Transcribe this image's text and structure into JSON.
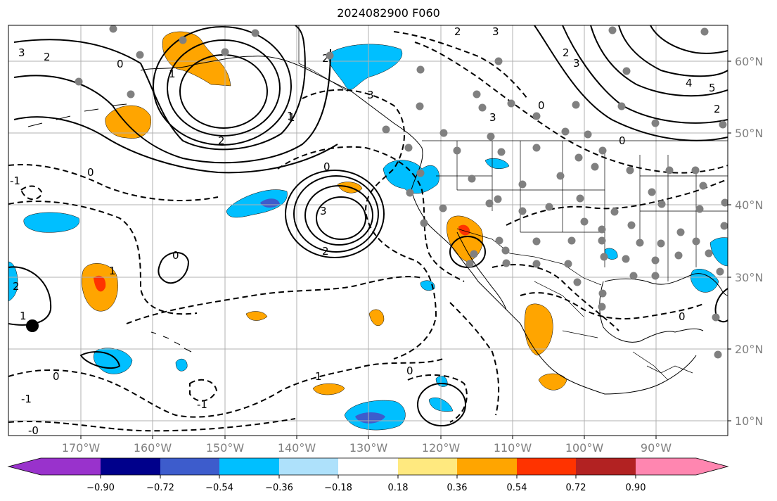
{
  "title": "2024082900 F060",
  "map": {
    "projection": "cylindrical",
    "lon_range": [
      -180,
      -80
    ],
    "lat_range": [
      8,
      65
    ],
    "lon_labels": [
      "170°W",
      "160°W",
      "150°W",
      "140°W",
      "130°W",
      "120°W",
      "110°W",
      "100°W",
      "90°W"
    ],
    "lat_labels": [
      "60°N",
      "50°N",
      "40°N",
      "30°N",
      "20°N",
      "10°N"
    ],
    "contour_line_color": "#000000",
    "contour_labels": [
      "3",
      "2",
      "0",
      "2",
      "1",
      "3",
      "2",
      "0",
      "3",
      "3",
      "2",
      "0",
      "4",
      "5",
      "2",
      "2",
      "1",
      "3",
      "2",
      "0",
      "0",
      "-1",
      "1",
      "2",
      "1",
      "0",
      "0",
      "1",
      "0",
      "-1",
      "-1",
      "0",
      "-0",
      "3",
      "1"
    ],
    "station_dot_color": "#808080"
  },
  "colorbar": {
    "ticks": [
      "−0.90",
      "−0.72",
      "−0.54",
      "−0.36",
      "−0.18",
      "0.18",
      "0.36",
      "0.54",
      "0.72",
      "0.90"
    ],
    "colors": [
      "#9932cc",
      "#00008b",
      "#3d5ccc",
      "#00bfff",
      "#aee1fb",
      "#ffffff",
      "#ffe97f",
      "#ffa500",
      "#ff3300",
      "#b22222",
      "#ff86b0"
    ]
  }
}
